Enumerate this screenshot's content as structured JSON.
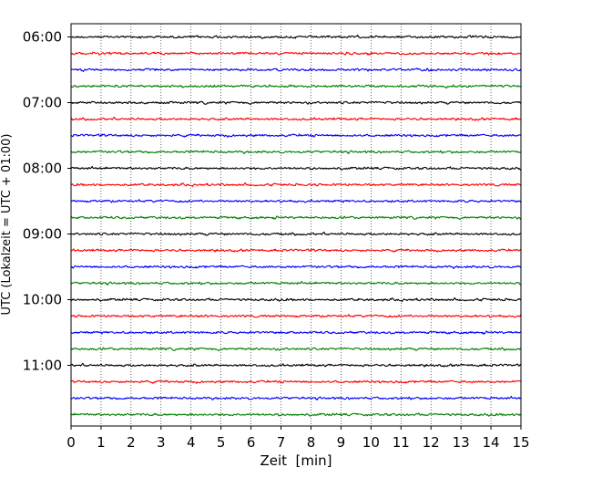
{
  "chart_data": {
    "type": "line",
    "subtype": "helicorder",
    "title": "",
    "xlabel": "Zeit  [min]",
    "ylabel": "UTC (Lokalzeit = UTC + 01:00)",
    "xlim": [
      0,
      15
    ],
    "x_ticks": [
      "0",
      "1",
      "2",
      "3",
      "4",
      "5",
      "6",
      "7",
      "8",
      "9",
      "10",
      "11",
      "12",
      "13",
      "14",
      "15"
    ],
    "y_ticks": [
      "06:00",
      "07:00",
      "08:00",
      "09:00",
      "10:00",
      "11:00"
    ],
    "grid": "vertical dotted lines at each minute",
    "traces_per_hour": 4,
    "trace_minutes": 15,
    "trace_colors": [
      "#000000",
      "#ff0000",
      "#0000ff",
      "#008000"
    ],
    "traces": [
      {
        "start": "06:00",
        "color": "#000000"
      },
      {
        "start": "06:15",
        "color": "#ff0000"
      },
      {
        "start": "06:30",
        "color": "#0000ff"
      },
      {
        "start": "06:45",
        "color": "#008000"
      },
      {
        "start": "07:00",
        "color": "#000000"
      },
      {
        "start": "07:15",
        "color": "#ff0000"
      },
      {
        "start": "07:30",
        "color": "#0000ff"
      },
      {
        "start": "07:45",
        "color": "#008000"
      },
      {
        "start": "08:00",
        "color": "#000000"
      },
      {
        "start": "08:15",
        "color": "#ff0000"
      },
      {
        "start": "08:30",
        "color": "#0000ff"
      },
      {
        "start": "08:45",
        "color": "#008000"
      },
      {
        "start": "09:00",
        "color": "#000000"
      },
      {
        "start": "09:15",
        "color": "#ff0000"
      },
      {
        "start": "09:30",
        "color": "#0000ff"
      },
      {
        "start": "09:45",
        "color": "#008000"
      },
      {
        "start": "10:00",
        "color": "#000000"
      },
      {
        "start": "10:15",
        "color": "#ff0000"
      },
      {
        "start": "10:30",
        "color": "#0000ff"
      },
      {
        "start": "10:45",
        "color": "#008000"
      },
      {
        "start": "11:00",
        "color": "#000000"
      },
      {
        "start": "11:15",
        "color": "#ff0000"
      },
      {
        "start": "11:30",
        "color": "#0000ff"
      },
      {
        "start": "11:45",
        "color": "#008000"
      }
    ]
  }
}
